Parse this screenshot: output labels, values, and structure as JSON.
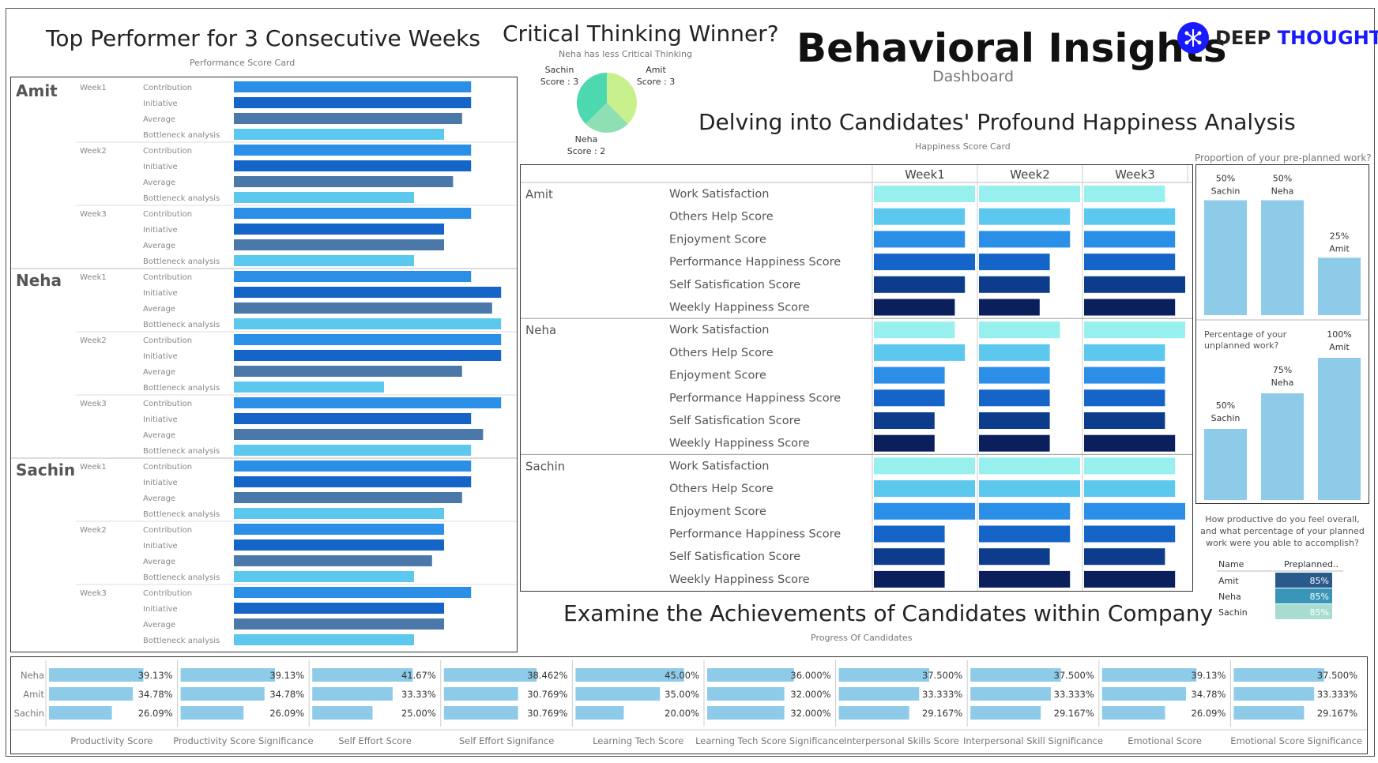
{
  "brand": {
    "name_part1": "DEEP",
    "name_part2": "THOUGHT"
  },
  "header": {
    "title": "Behavioral Insights",
    "subtitle": "Dashboard"
  },
  "top_performer": {
    "title": "Top Performer for 3 Consecutive Weeks",
    "subtitle": "Performance Score Card",
    "metrics": [
      "Contribution",
      "Initiative",
      "Average",
      "Bottleneck analysis"
    ],
    "colors": [
      "#2b8fe8",
      "#1565c8",
      "#4a78a8",
      "#5cc8ee"
    ]
  },
  "critical_thinking": {
    "title": "Critical Thinking Winner?",
    "subtitle": "Neha has less Critical Thinking"
  },
  "happiness": {
    "title": "Delving into Candidates' Profound Happiness Analysis",
    "subtitle": "Happiness Score Card",
    "weeks": [
      "Week1",
      "Week2",
      "Week3"
    ],
    "metrics": [
      "Work Satisfaction",
      "Others Help Score",
      "Enjoyment Score",
      "Performance Happiness Score",
      "Self Satisfication Score",
      "Weekly Happiness Score"
    ],
    "colors": [
      "#97f0ee",
      "#5cc8ee",
      "#2b8fe8",
      "#1565c8",
      "#0d3c8c",
      "#0a1f5c"
    ]
  },
  "preplanned": {
    "title": "Proportion of your pre-planned work?",
    "unplanned_title_line1": "Percentage of your",
    "unplanned_title_line2": "unplanned work?",
    "bar_color": "#8dcbe8"
  },
  "productive": {
    "question_line1": "How productive do you feel overall,",
    "question_line2": "and what percentage of your planned",
    "question_line3": "work were you able to accomplish?",
    "header_name": "Name",
    "header_value": "Preplanned..",
    "rows": [
      {
        "name": "Amit",
        "value": "85%",
        "color": "#2a5a8c"
      },
      {
        "name": "Neha",
        "value": "85%",
        "color": "#3a96b8"
      },
      {
        "name": "Sachin",
        "value": "85%",
        "color": "#a8dcd0"
      }
    ]
  },
  "achievements": {
    "title": "Examine the Achievements of Candidates within Company",
    "subtitle": "Progress Of Candidates",
    "bar_color": "#8dcbe8"
  },
  "chart_data": [
    {
      "type": "bar",
      "id": "performance-score-card",
      "orientation": "horizontal",
      "title": "Top Performer for 3 Consecutive Weeks",
      "subtitle": "Performance Score Card",
      "candidates": [
        "Amit",
        "Neha",
        "Sachin"
      ],
      "weeks": [
        "Week1",
        "Week2",
        "Week3"
      ],
      "metrics": [
        "Contribution",
        "Initiative",
        "Average",
        "Bottleneck analysis"
      ],
      "values": {
        "Amit": [
          [
            0.79,
            0.79,
            0.76,
            0.7
          ],
          [
            0.79,
            0.79,
            0.73,
            0.6
          ],
          [
            0.79,
            0.7,
            0.7,
            0.6
          ]
        ],
        "Neha": [
          [
            0.79,
            0.89,
            0.86,
            0.89
          ],
          [
            0.89,
            0.89,
            0.76,
            0.5
          ],
          [
            0.89,
            0.79,
            0.83,
            0.79
          ]
        ],
        "Sachin": [
          [
            0.79,
            0.79,
            0.76,
            0.7
          ],
          [
            0.7,
            0.7,
            0.66,
            0.6
          ],
          [
            0.79,
            0.7,
            0.7,
            0.6
          ]
        ]
      },
      "xlim": [
        0,
        1
      ]
    },
    {
      "type": "pie",
      "id": "critical-thinking-pie",
      "title": "Critical Thinking Winner?",
      "labels": [
        "Amit",
        "Neha",
        "Sachin"
      ],
      "label_texts": [
        "Score : 3",
        "Score : 2",
        "Score : 3"
      ],
      "values": [
        3,
        2,
        3
      ],
      "colors": [
        "#c8f08c",
        "#8ee0b4",
        "#4ed8b0"
      ]
    },
    {
      "type": "bar",
      "id": "happiness-score-card",
      "orientation": "horizontal",
      "title": "Delving into Candidates' Profound Happiness Analysis",
      "subtitle": "Happiness Score Card",
      "candidates": [
        "Amit",
        "Neha",
        "Sachin"
      ],
      "weeks": [
        "Week1",
        "Week2",
        "Week3"
      ],
      "metrics": [
        "Work Satisfaction",
        "Others Help Score",
        "Enjoyment Score",
        "Performance Happiness Score",
        "Self Satisfication Score",
        "Weekly Happiness Score"
      ],
      "values": {
        "Amit": [
          [
            1.0,
            0.9,
            0.9,
            1.0,
            0.9,
            0.8
          ],
          [
            1.0,
            0.9,
            0.9,
            0.7,
            0.7,
            0.6
          ],
          [
            0.8,
            0.9,
            0.9,
            0.9,
            1.0,
            0.9
          ]
        ],
        "Neha": [
          [
            0.8,
            0.9,
            0.7,
            0.7,
            0.6,
            0.6
          ],
          [
            0.8,
            0.7,
            0.7,
            0.7,
            0.7,
            0.7
          ],
          [
            1.0,
            0.8,
            0.8,
            0.8,
            0.8,
            0.9
          ]
        ],
        "Sachin": [
          [
            1.0,
            1.0,
            1.0,
            0.7,
            0.7,
            0.7
          ],
          [
            1.0,
            1.0,
            0.9,
            0.9,
            0.7,
            0.9
          ],
          [
            0.9,
            0.9,
            1.0,
            0.9,
            0.8,
            0.9
          ]
        ]
      },
      "xlim": [
        0,
        1
      ]
    },
    {
      "type": "bar",
      "id": "preplanned-work",
      "title": "Proportion of your pre-planned work?",
      "categories": [
        "Sachin",
        "Neha",
        "Amit"
      ],
      "values": [
        50,
        50,
        25
      ],
      "value_labels": [
        "50%",
        "50%",
        "25%"
      ],
      "ylim": [
        0,
        55
      ]
    },
    {
      "type": "bar",
      "id": "unplanned-work",
      "title": "Percentage of your unplanned work?",
      "categories": [
        "Sachin",
        "Neha",
        "Amit"
      ],
      "values": [
        50,
        75,
        100
      ],
      "value_labels": [
        "50%",
        "75%",
        "100%"
      ],
      "ylim": [
        0,
        110
      ]
    },
    {
      "type": "table",
      "id": "productive-table",
      "columns": [
        "Name",
        "Preplanned.."
      ],
      "rows": [
        [
          "Amit",
          "85%"
        ],
        [
          "Neha",
          "85%"
        ],
        [
          "Sachin",
          "85%"
        ]
      ]
    },
    {
      "type": "bar",
      "id": "achievements",
      "orientation": "horizontal",
      "title": "Examine the Achievements of Candidates within Company",
      "subtitle": "Progress Of Candidates",
      "rows": [
        "Neha",
        "Amit",
        "Sachin"
      ],
      "panels": [
        {
          "label": "Productivity Score",
          "values": [
            39.13,
            34.78,
            26.09
          ],
          "texts": [
            "39.13%",
            "34.78%",
            "26.09%"
          ]
        },
        {
          "label": "Productivity Score Significance",
          "values": [
            39.13,
            34.78,
            26.09
          ],
          "texts": [
            "39.13%",
            "34.78%",
            "26.09%"
          ]
        },
        {
          "label": "Self Effort Score",
          "values": [
            41.67,
            33.33,
            25.0
          ],
          "texts": [
            "41.67%",
            "33.33%",
            "25.00%"
          ]
        },
        {
          "label": "Self Effort Signifance",
          "values": [
            38.462,
            30.769,
            30.769
          ],
          "texts": [
            "38.462%",
            "30.769%",
            "30.769%"
          ]
        },
        {
          "label": "Learning Tech Score",
          "values": [
            45.0,
            35.0,
            20.0
          ],
          "texts": [
            "45.00%",
            "35.00%",
            "20.00%"
          ]
        },
        {
          "label": "Learning Tech Score Significance",
          "values": [
            36.0,
            32.0,
            32.0
          ],
          "texts": [
            "36.000%",
            "32.000%",
            "32.000%"
          ]
        },
        {
          "label": "Interpersonal Skills Score",
          "values": [
            37.5,
            33.333,
            29.167
          ],
          "texts": [
            "37.500%",
            "33.333%",
            "29.167%"
          ]
        },
        {
          "label": "Interpersonal Skill Significance",
          "values": [
            37.5,
            33.333,
            29.167
          ],
          "texts": [
            "37.500%",
            "33.333%",
            "29.167%"
          ]
        },
        {
          "label": "Emotional Score",
          "values": [
            39.13,
            34.78,
            26.09
          ],
          "texts": [
            "39.13%",
            "34.78%",
            "26.09%"
          ]
        },
        {
          "label": "Emotional Score Significance",
          "values": [
            37.5,
            33.333,
            29.167
          ],
          "texts": [
            "37.500%",
            "33.333%",
            "29.167%"
          ]
        }
      ],
      "xlim": [
        0,
        50
      ]
    }
  ]
}
